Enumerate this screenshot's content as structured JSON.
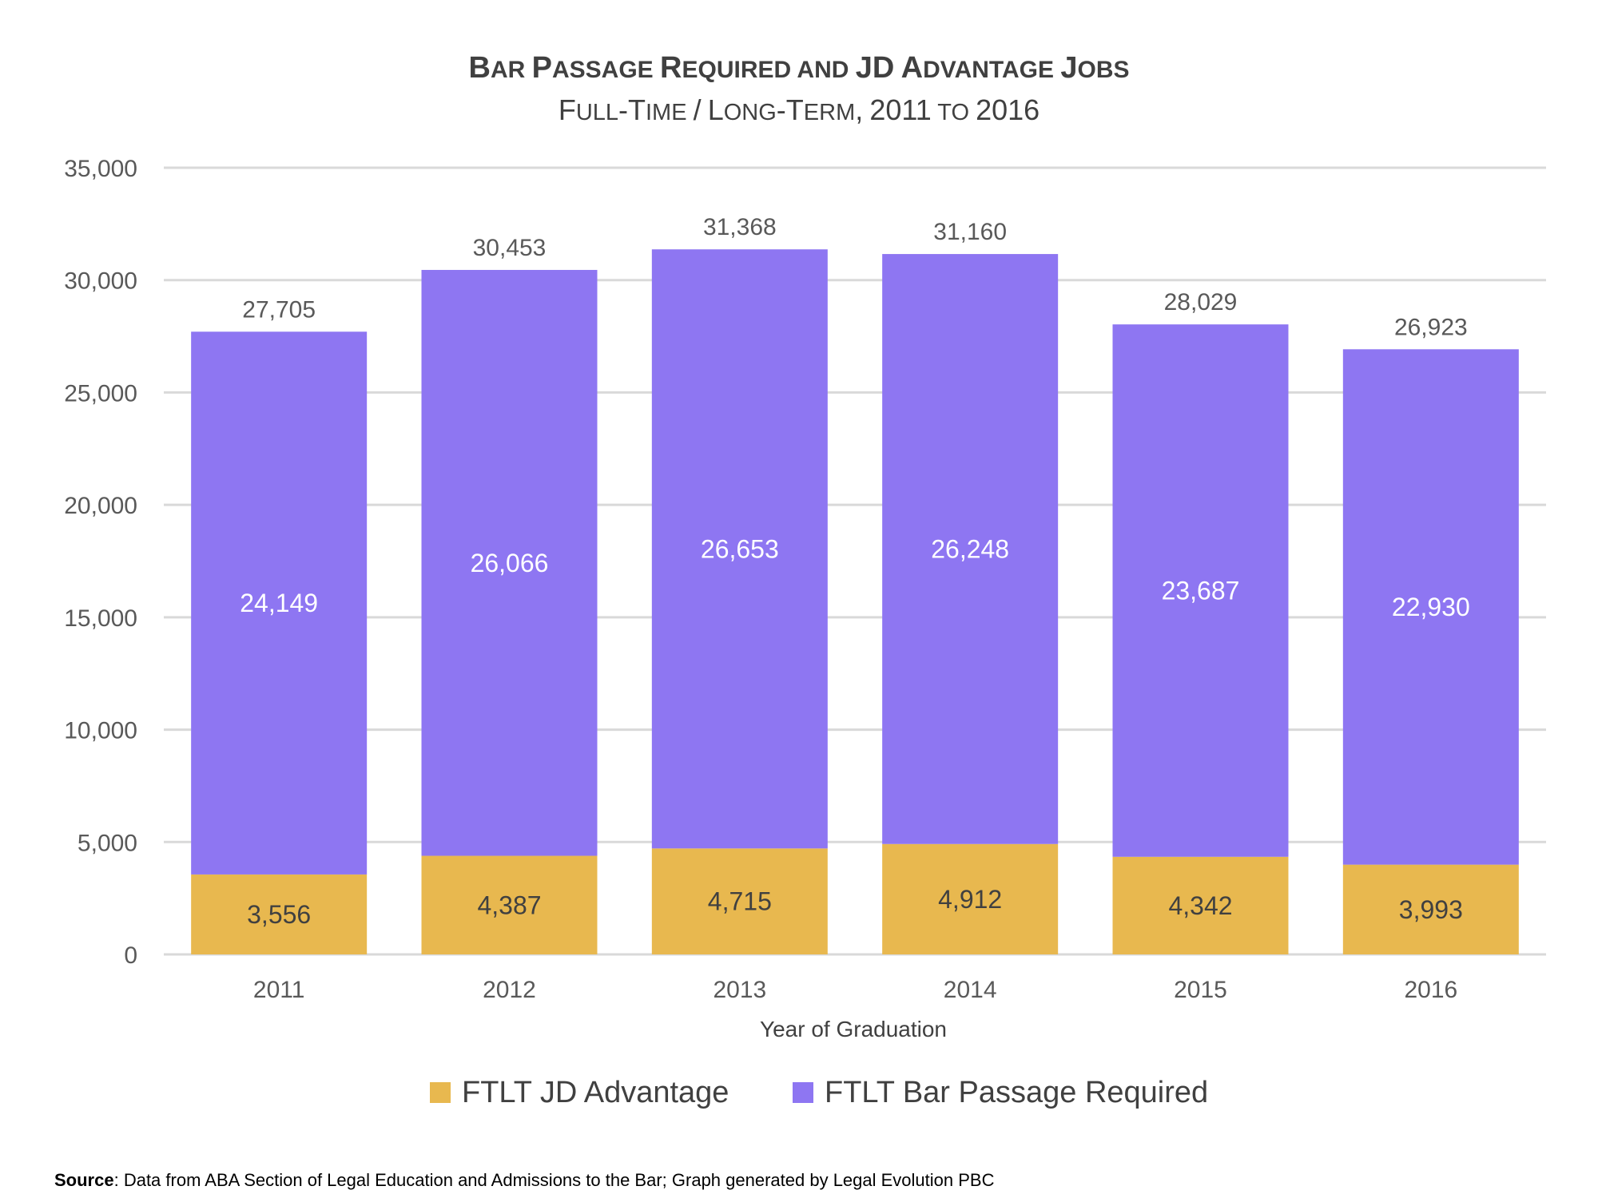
{
  "chart_data": {
    "type": "bar",
    "stacked": true,
    "title": "Bar Passage Required and JD Advantage Jobs",
    "subtitle": "Full-Time / Long-Term, 2011 to 2016",
    "xlabel": "Year of Graduation",
    "ylabel": "",
    "ylim": [
      0,
      35000
    ],
    "yticks": [
      "0",
      "5,000",
      "10,000",
      "15,000",
      "20,000",
      "25,000",
      "30,000",
      "35,000"
    ],
    "grid": true,
    "legend_position": "bottom",
    "categories": [
      "2011",
      "2012",
      "2013",
      "2014",
      "2015",
      "2016"
    ],
    "series": [
      {
        "name": "FTLT JD Advantage",
        "color": "#E8B84F",
        "values": [
          3556,
          4387,
          4715,
          4912,
          4342,
          3993
        ],
        "labels": [
          "3,556",
          "4,387",
          "4,715",
          "4,912",
          "4,342",
          "3,993"
        ]
      },
      {
        "name": "FTLT Bar Passage Required",
        "color": "#8E76F2",
        "values": [
          24149,
          26066,
          26653,
          26248,
          23687,
          22930
        ],
        "labels": [
          "24,149",
          "26,066",
          "26,653",
          "26,248",
          "23,687",
          "22,930"
        ]
      }
    ],
    "totals": [
      "27,705",
      "30,453",
      "31,368",
      "31,160",
      "28,029",
      "26,923"
    ]
  },
  "source": {
    "label": "Source",
    "text": ": Data from ABA Section of Legal Education and Admissions to the Bar; Graph generated by Legal Evolution PBC"
  }
}
